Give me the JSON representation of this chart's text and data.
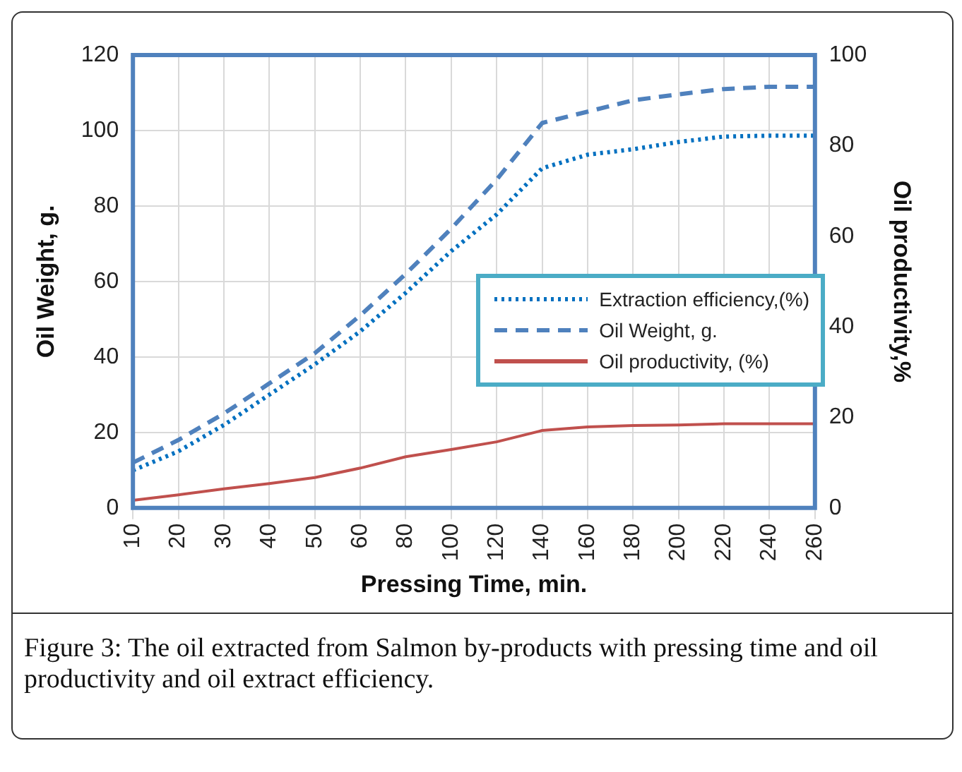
{
  "chart_data": {
    "type": "line",
    "xlabel": "Pressing Time, min.",
    "ylabel": "Oil Weight, g.",
    "y2label": "Oil productivity,%",
    "annotations": [
      "Figure 3: The oil extracted from Salmon by-products with pressing time and oil productivity and oil extract efficiency."
    ],
    "categories": [
      "10",
      "20",
      "30",
      "40",
      "50",
      "60",
      "80",
      "100",
      "120",
      "140",
      "160",
      "180",
      "200",
      "220",
      "240",
      "260"
    ],
    "series": [
      {
        "name": "Extraction efficiency,(%)",
        "color": "#0070c0",
        "line_style": "dotted",
        "axis": "y2",
        "values": [
          8.3,
          12.5,
          18.3,
          25,
          31.7,
          39,
          47.5,
          56.7,
          64.8,
          75,
          78,
          79.2,
          80.8,
          82,
          82.2,
          82.2
        ]
      },
      {
        "name": "Oil Weight, g.",
        "color": "#4f81bd",
        "line_style": "dashed",
        "values": [
          12,
          18,
          25,
          33,
          41,
          51,
          62,
          74,
          87,
          102,
          105,
          108,
          109.6,
          111,
          111.6,
          111.6
        ]
      },
      {
        "name": "Oil productivity, (%)",
        "color": "#c0504d",
        "line_style": "solid",
        "axis": "y2",
        "values": [
          1.7,
          2.9,
          4.2,
          5.4,
          6.7,
          8.8,
          11.3,
          12.9,
          14.6,
          17.1,
          17.9,
          18.2,
          18.3,
          18.6,
          18.6,
          18.6
        ]
      }
    ],
    "ylim": [
      0,
      120
    ],
    "yticks": [
      0,
      20,
      40,
      60,
      80,
      100,
      120
    ],
    "y2lim": [
      0,
      100
    ],
    "y2ticks": [
      0,
      20,
      40,
      60,
      80,
      100
    ],
    "grid": true,
    "legend": "right",
    "marker": "none"
  }
}
